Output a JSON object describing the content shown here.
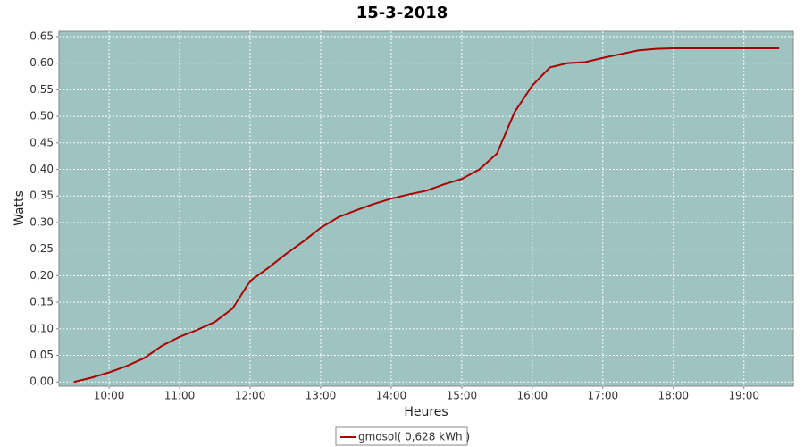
{
  "chart_data": {
    "type": "line",
    "title": "15-3-2018",
    "x_label": "Heures",
    "y_label": "Watts",
    "x": [
      9.5,
      9.75,
      10,
      10.25,
      10.5,
      10.75,
      11,
      11.25,
      11.5,
      11.75,
      12,
      12.25,
      12.5,
      12.75,
      13,
      13.25,
      13.5,
      13.75,
      14,
      14.25,
      14.5,
      14.75,
      15,
      15.25,
      15.5,
      15.75,
      16,
      16.25,
      16.5,
      16.75,
      17,
      17.25,
      17.5,
      17.75,
      18,
      18.25,
      18.5,
      18.75,
      19,
      19.25,
      19.5
    ],
    "series": [
      {
        "name": "gmosol( 0,628 kWh )",
        "color": "#aa0000",
        "values": [
          0,
          0.008,
          0.018,
          0.03,
          0.045,
          0.068,
          0.085,
          0.098,
          0.113,
          0.138,
          0.19,
          0.214,
          0.24,
          0.264,
          0.29,
          0.31,
          0.323,
          0.335,
          0.345,
          0.353,
          0.36,
          0.372,
          0.382,
          0.4,
          0.43,
          0.508,
          0.558,
          0.592,
          0.6,
          0.602,
          0.61,
          0.617,
          0.624,
          0.627,
          0.628,
          0.628,
          0.628,
          0.628,
          0.628,
          0.628,
          0.628
        ]
      }
    ],
    "xlim": [
      9.29,
      19.7
    ],
    "xticks": [
      {
        "value": 10,
        "label": "10:00"
      },
      {
        "value": 11,
        "label": "11:00"
      },
      {
        "value": 12,
        "label": "12:00"
      },
      {
        "value": 13,
        "label": "13:00"
      },
      {
        "value": 14,
        "label": "14:00"
      },
      {
        "value": 15,
        "label": "15:00"
      },
      {
        "value": 16,
        "label": "16:00"
      },
      {
        "value": 17,
        "label": "17:00"
      },
      {
        "value": 18,
        "label": "18:00"
      },
      {
        "value": 19,
        "label": "19:00"
      }
    ],
    "ylim": [
      -0.008,
      0.66
    ],
    "yticks": [
      {
        "value": 0,
        "label": "0,00"
      },
      {
        "value": 0.05,
        "label": "0,05"
      },
      {
        "value": 0.1,
        "label": "0,10"
      },
      {
        "value": 0.15,
        "label": "0,15"
      },
      {
        "value": 0.2,
        "label": "0,20"
      },
      {
        "value": 0.25,
        "label": "0,25"
      },
      {
        "value": 0.3,
        "label": "0,30"
      },
      {
        "value": 0.35,
        "label": "0,35"
      },
      {
        "value": 0.4,
        "label": "0,40"
      },
      {
        "value": 0.45,
        "label": "0,45"
      },
      {
        "value": 0.5,
        "label": "0,50"
      },
      {
        "value": 0.55,
        "label": "0,55"
      },
      {
        "value": 0.6,
        "label": "0,60"
      },
      {
        "value": 0.65,
        "label": "0,65"
      }
    ],
    "grid": true,
    "plot_background": "#9fc3c1",
    "legend_position": "bottom"
  }
}
